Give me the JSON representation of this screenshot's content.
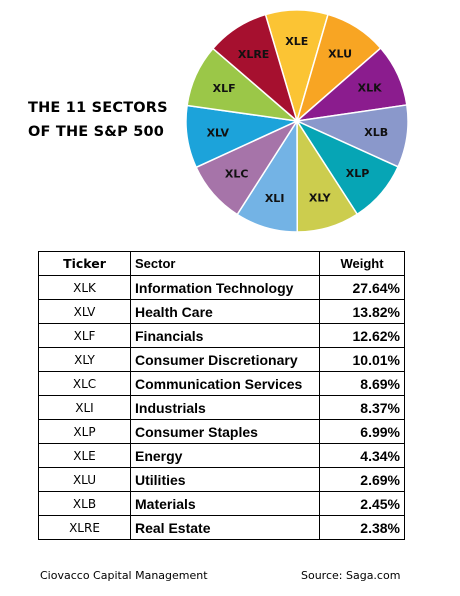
{
  "title": {
    "line1": "THE 11 SECTORS",
    "line2": "OF THE S&P 500"
  },
  "chart_data": {
    "type": "pie",
    "slices": [
      {
        "label": "XLE",
        "color": "#FBC434"
      },
      {
        "label": "XLU",
        "color": "#F8A523"
      },
      {
        "label": "XLK",
        "color": "#8B1C8E"
      },
      {
        "label": "XLB",
        "color": "#8A98CB"
      },
      {
        "label": "XLP",
        "color": "#06A5B5"
      },
      {
        "label": "XLY",
        "color": "#CCCD4E"
      },
      {
        "label": "XLI",
        "color": "#73B3E5"
      },
      {
        "label": "XLC",
        "color": "#A674A9"
      },
      {
        "label": "XLV",
        "color": "#1CA3DA"
      },
      {
        "label": "XLF",
        "color": "#9BC748"
      },
      {
        "label": "XLRE",
        "color": "#A6102F"
      }
    ]
  },
  "table": {
    "headers": {
      "ticker": "Ticker",
      "sector": "Sector",
      "weight": "Weight"
    },
    "rows": [
      {
        "ticker": "XLK",
        "sector": "Information Technology",
        "weight": "27.64%"
      },
      {
        "ticker": "XLV",
        "sector": "Health Care",
        "weight": "13.82%"
      },
      {
        "ticker": "XLF",
        "sector": "Financials",
        "weight": "12.62%"
      },
      {
        "ticker": "XLY",
        "sector": "Consumer Discretionary",
        "weight": "10.01%"
      },
      {
        "ticker": "XLC",
        "sector": "Communication Services",
        "weight": "8.69%"
      },
      {
        "ticker": "XLI",
        "sector": "Industrials",
        "weight": "8.37%"
      },
      {
        "ticker": "XLP",
        "sector": "Consumer Staples",
        "weight": "6.99%"
      },
      {
        "ticker": "XLE",
        "sector": "Energy",
        "weight": "4.34%"
      },
      {
        "ticker": "XLU",
        "sector": "Utilities",
        "weight": "2.69%"
      },
      {
        "ticker": "XLB",
        "sector": "Materials",
        "weight": "2.45%"
      },
      {
        "ticker": "XLRE",
        "sector": "Real Estate",
        "weight": "2.38%"
      }
    ]
  },
  "footer": {
    "left": "Ciovacco Capital Management",
    "right": "Source:   Saga.com"
  }
}
